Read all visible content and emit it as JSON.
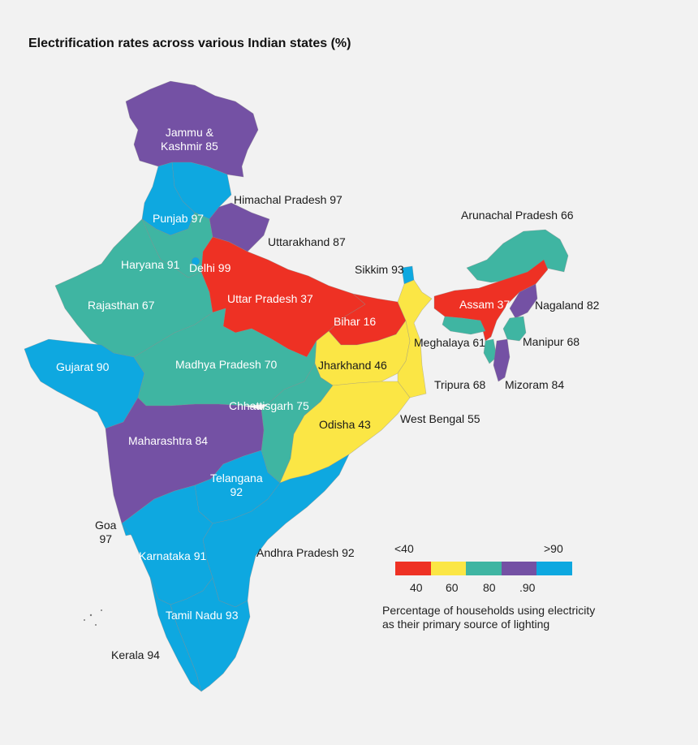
{
  "title": "Electrification rates across various Indian states (%)",
  "colors": {
    "lt40": "#ee3124",
    "40_60": "#fbe645",
    "60_80": "#3fb5a2",
    "80_90": "#7451a4",
    "gt90": "#0ea8e0"
  },
  "states": [
    {
      "name": "Jammu & Kashmir",
      "value": 85,
      "label_lines": [
        "Jammu &",
        "Kashmir 85"
      ]
    },
    {
      "name": "Himachal Pradesh",
      "value": 97,
      "label": "Himachal Pradesh 97"
    },
    {
      "name": "Punjab",
      "value": 97,
      "label": "Punjab 97"
    },
    {
      "name": "Uttarakhand",
      "value": 87,
      "label": "Uttarakhand 87"
    },
    {
      "name": "Haryana",
      "value": 91,
      "label": "Haryana 91"
    },
    {
      "name": "Delhi",
      "value": 99,
      "label": "Delhi 99"
    },
    {
      "name": "Rajasthan",
      "value": 67,
      "label": "Rajasthan 67"
    },
    {
      "name": "Uttar Pradesh",
      "value": 37,
      "label": "Uttar Pradesh 37"
    },
    {
      "name": "Bihar",
      "value": 16,
      "label": "Bihar 16"
    },
    {
      "name": "Sikkim",
      "value": 93,
      "label": "Sikkim 93"
    },
    {
      "name": "Arunachal Pradesh",
      "value": 66,
      "label": "Arunachal Pradesh 66"
    },
    {
      "name": "Assam",
      "value": 37,
      "label": "Assam 37"
    },
    {
      "name": "Nagaland",
      "value": 82,
      "label": "Nagaland 82"
    },
    {
      "name": "Meghalaya",
      "value": 61,
      "label": "Meghalaya 61"
    },
    {
      "name": "Manipur",
      "value": 68,
      "label": "Manipur 68"
    },
    {
      "name": "Tripura",
      "value": 68,
      "label": "Tripura 68"
    },
    {
      "name": "Mizoram",
      "value": 84,
      "label": "Mizoram 84"
    },
    {
      "name": "Gujarat",
      "value": 90,
      "label": "Gujarat 90"
    },
    {
      "name": "Madhya Pradesh",
      "value": 70,
      "label": "Madhya Pradesh 70"
    },
    {
      "name": "Jharkhand",
      "value": 46,
      "label": "Jharkhand 46"
    },
    {
      "name": "Chhattisgarh",
      "value": 75,
      "label": "Chhattisgarh 75"
    },
    {
      "name": "West Bengal",
      "value": 55,
      "label": "West Bengal 55"
    },
    {
      "name": "Odisha",
      "value": 43,
      "label": "Odisha 43"
    },
    {
      "name": "Maharashtra",
      "value": 84,
      "label": "Maharashtra 84"
    },
    {
      "name": "Telangana",
      "value": 92,
      "label_lines": [
        "Telangana",
        "92"
      ]
    },
    {
      "name": "Goa",
      "value": 97,
      "label_lines": [
        "Goa",
        "97"
      ]
    },
    {
      "name": "Karnataka",
      "value": 91,
      "label": "Karnataka 91"
    },
    {
      "name": "Andhra Pradesh",
      "value": 92,
      "label": "Andhra Pradesh 92"
    },
    {
      "name": "Tamil Nadu",
      "value": 93,
      "label": "Tamil Nadu 93"
    },
    {
      "name": "Kerala",
      "value": 94,
      "label": "Kerala 94"
    }
  ],
  "legend": {
    "low_end": "<40",
    "high_end": ">90",
    "ticks": [
      "40",
      "60",
      "80",
      ".90"
    ],
    "caption_lines": [
      "Percentage of households using electricity",
      "as their primary source of lighting"
    ]
  }
}
